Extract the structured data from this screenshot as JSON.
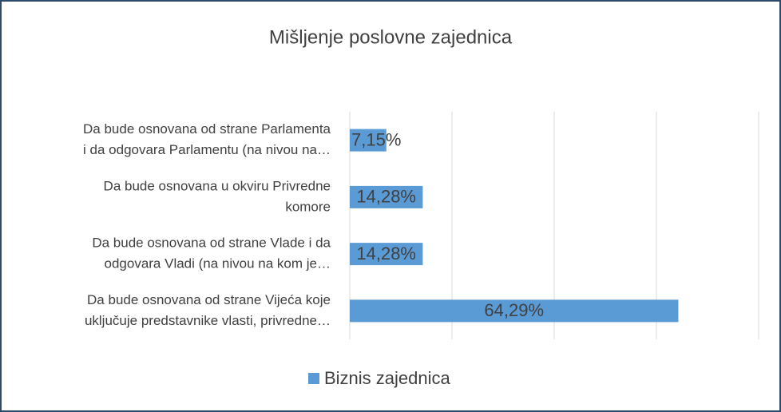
{
  "chart_data": {
    "type": "bar",
    "orientation": "horizontal",
    "title": "Mišljenje poslovne zajednica",
    "categories": [
      [
        "Da bude osnovana od strane Parlamenta",
        "i da odgovara Parlamentu  (na nivou na…"
      ],
      [
        "Da bude osnovana u okviru Privredne",
        "komore"
      ],
      [
        "Da bude osnovana od strane Vlade i da",
        "odgovara Vladi (na nivou na kom je…"
      ],
      [
        "Da bude osnovana od strane Vijeća koje",
        "uključuje predstavnike vlasti, privredne…"
      ]
    ],
    "series": [
      {
        "name": "Biznis zajednica",
        "color": "#5b9bd5",
        "values": [
          7.15,
          14.28,
          14.28,
          64.29
        ],
        "value_labels": [
          "7,15%",
          "14,28%",
          "14,28%",
          "64,29%"
        ]
      }
    ],
    "xlim": [
      0,
      80
    ],
    "xticks": [
      0,
      20,
      40,
      60,
      80
    ],
    "grid": true,
    "legend": "bottom"
  }
}
